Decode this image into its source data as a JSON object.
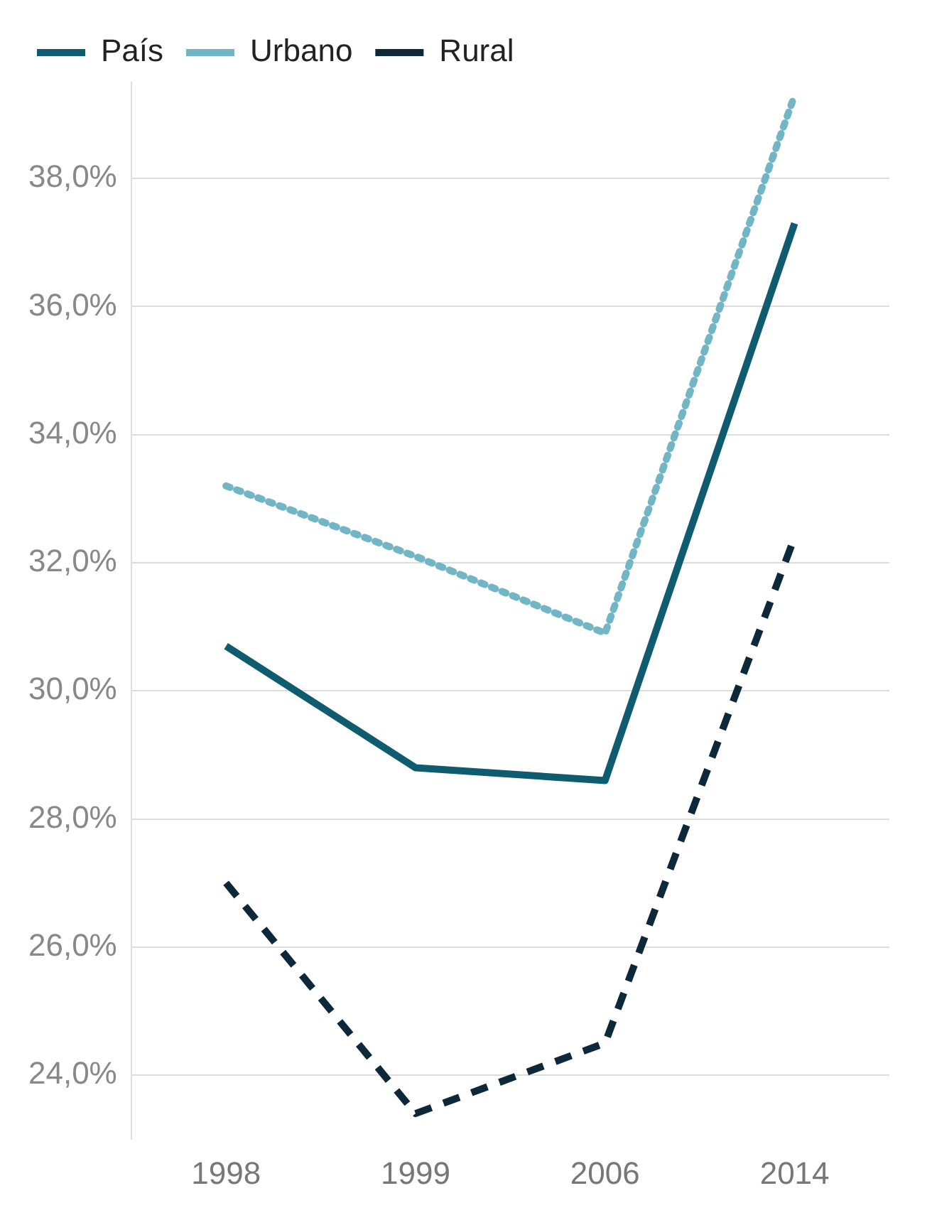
{
  "chart_data": {
    "type": "line",
    "categories": [
      "1998",
      "1999",
      "2006",
      "2014"
    ],
    "series": [
      {
        "name": "País",
        "color": "#0f5b6f",
        "line_style": "solid",
        "values": [
          30.7,
          28.8,
          28.6,
          37.3
        ]
      },
      {
        "name": "Urbano",
        "color": "#72b6c6",
        "line_style": "dotted",
        "values": [
          33.2,
          32.1,
          30.9,
          39.3
        ]
      },
      {
        "name": "Rural",
        "color": "#0d2838",
        "line_style": "dashed",
        "values": [
          27.0,
          23.4,
          24.5,
          32.4
        ]
      }
    ],
    "ylim": [
      23,
      39.5
    ],
    "yticks": [
      {
        "value": 24,
        "label": "24,0%"
      },
      {
        "value": 26,
        "label": "26,0%"
      },
      {
        "value": 28,
        "label": "28,0%"
      },
      {
        "value": 30,
        "label": "30,0%"
      },
      {
        "value": 32,
        "label": "32,0%"
      },
      {
        "value": 34,
        "label": "34,0%"
      },
      {
        "value": 36,
        "label": "36,0%"
      },
      {
        "value": 38,
        "label": "38,0%"
      }
    ],
    "grid": "y",
    "legend": "top left",
    "marker": "none"
  }
}
